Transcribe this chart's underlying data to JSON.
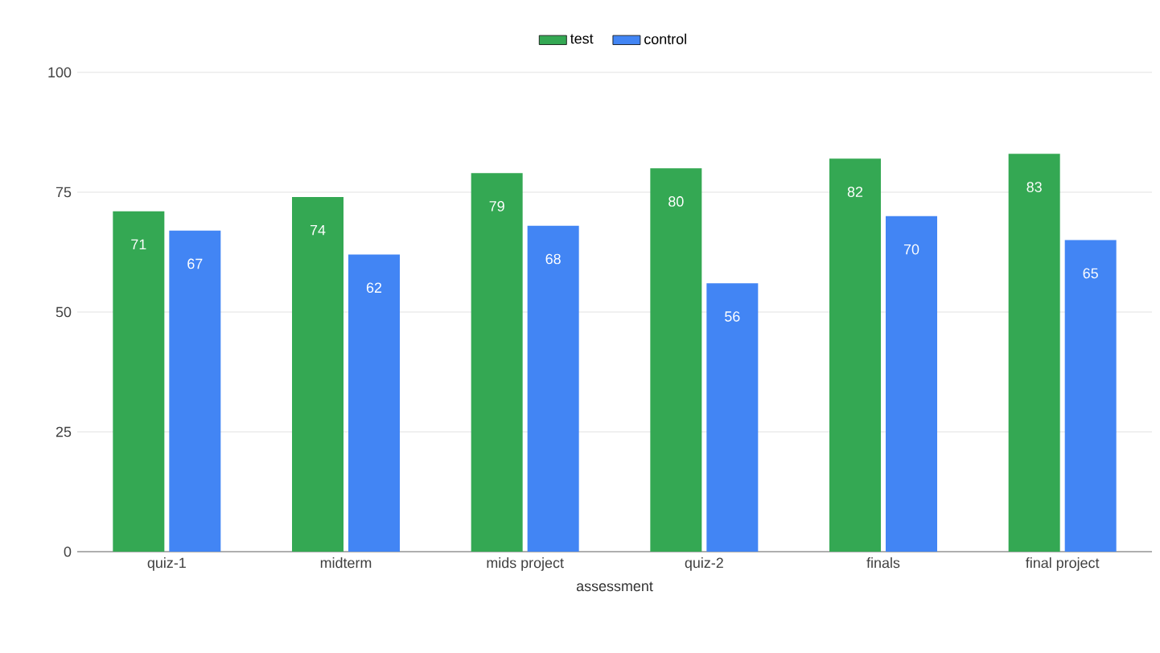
{
  "chart_data": {
    "type": "bar",
    "xlabel": "assessment",
    "categories": [
      "quiz-1",
      "midterm",
      "mids project",
      "quiz-2",
      "finals",
      "final project"
    ],
    "series": [
      {
        "name": "test",
        "color": "#34a853",
        "values": [
          71,
          74,
          79,
          80,
          82,
          83
        ]
      },
      {
        "name": "control",
        "color": "#4285f4",
        "values": [
          67,
          62,
          68,
          56,
          70,
          65
        ]
      }
    ],
    "ylim": [
      0,
      100
    ],
    "yticks": [
      0,
      25,
      50,
      75,
      100
    ],
    "grid": "y",
    "legend": "top",
    "data_labels": true
  }
}
